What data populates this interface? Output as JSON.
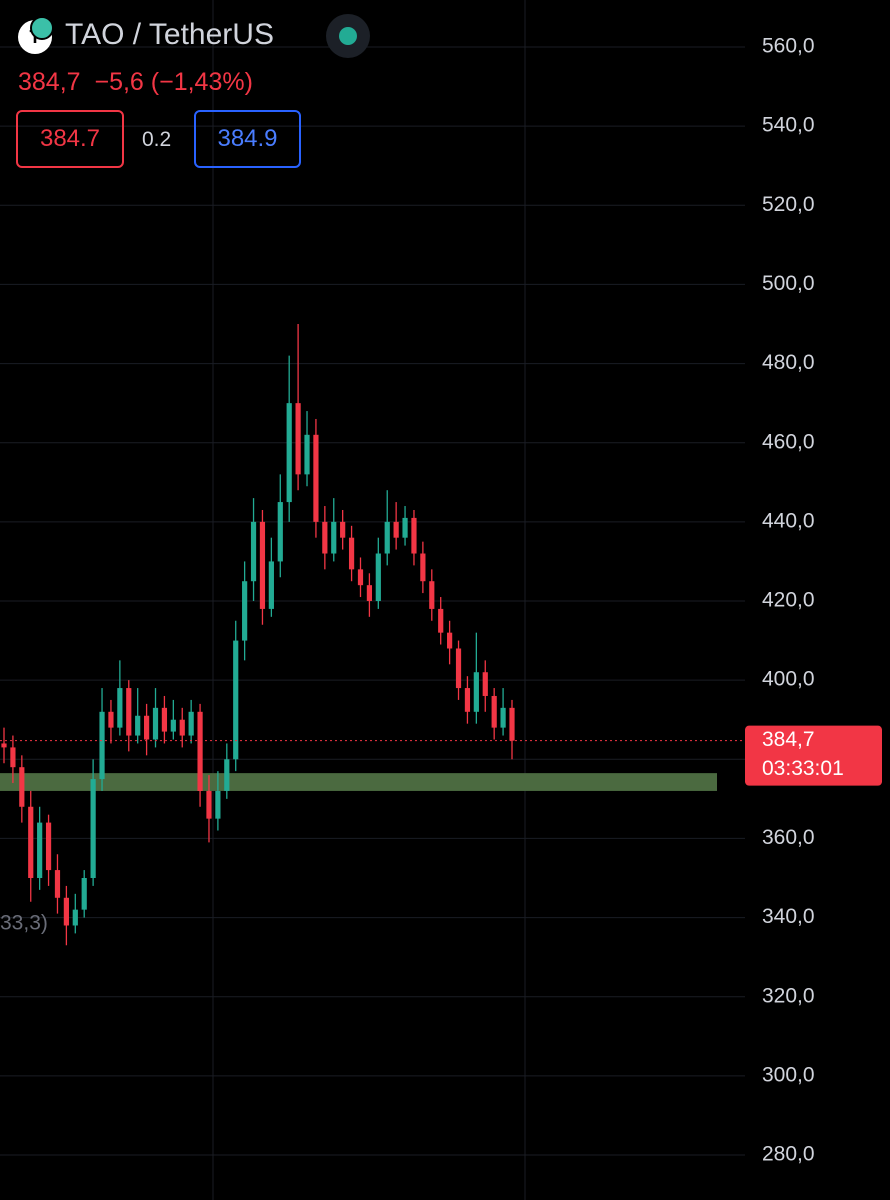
{
  "chart_data": {
    "type": "candlestick",
    "symbol": "TAO / TetherUS",
    "logo_text": "T",
    "last_price_text": "384,7",
    "change_text": "−5,6",
    "change_pct_text": "(−1,43%)",
    "bid": "384.7",
    "spread": "0.2",
    "ask": "384.9",
    "price_tag": {
      "value": 384.7,
      "label": "384,7",
      "countdown": "03:33:01"
    },
    "annotation": "33,3)",
    "up_color": "#22ab94",
    "down_color": "#f23645",
    "zone": {
      "from": 372,
      "to": 376.5,
      "color": "#4b6a40"
    },
    "ylim": [
      280,
      560
    ],
    "yticks": [
      {
        "value": 280,
        "label": "280,0"
      },
      {
        "value": 300,
        "label": "300,0"
      },
      {
        "value": 320,
        "label": "320,0"
      },
      {
        "value": 340,
        "label": "340,0"
      },
      {
        "value": 360,
        "label": "360,0"
      },
      {
        "value": 380,
        "label": "380,0"
      },
      {
        "value": 400,
        "label": "400,0"
      },
      {
        "value": 420,
        "label": "420,0"
      },
      {
        "value": 440,
        "label": "440,0"
      },
      {
        "value": 460,
        "label": "460,0"
      },
      {
        "value": 480,
        "label": "480,0"
      },
      {
        "value": 500,
        "label": "500,0"
      },
      {
        "value": 520,
        "label": "520,0"
      },
      {
        "value": 540,
        "label": "540,0"
      },
      {
        "value": 560,
        "label": "560,0"
      }
    ],
    "grid": true,
    "open": [
      384,
      383,
      378,
      368,
      350,
      364,
      352,
      345,
      338,
      342,
      350,
      375,
      392,
      388,
      398,
      386,
      391,
      385,
      393,
      387,
      390,
      386,
      392,
      372,
      365,
      372,
      380,
      410,
      425,
      440,
      418,
      430,
      445,
      470,
      452,
      462,
      440,
      432,
      440,
      436,
      428,
      424,
      420,
      432,
      440,
      436,
      441,
      432,
      425,
      418,
      412,
      408,
      398,
      392,
      402,
      396,
      388,
      393
    ],
    "high": [
      388,
      386,
      381,
      372,
      368,
      366,
      356,
      348,
      346,
      352,
      380,
      398,
      395,
      405,
      400,
      398,
      394,
      398,
      396,
      395,
      393,
      395,
      394,
      376,
      377,
      384,
      415,
      430,
      446,
      443,
      436,
      452,
      482,
      490,
      468,
      466,
      444,
      446,
      443,
      439,
      431,
      427,
      436,
      448,
      445,
      444,
      443,
      435,
      428,
      421,
      415,
      410,
      401,
      412,
      405,
      398,
      398,
      395
    ],
    "low": [
      379,
      374,
      364,
      344,
      347,
      348,
      341,
      333,
      336,
      340,
      348,
      372,
      384,
      386,
      382,
      384,
      381,
      383,
      384,
      385,
      383,
      384,
      368,
      359,
      362,
      370,
      377,
      405,
      420,
      414,
      416,
      426,
      440,
      448,
      449,
      436,
      428,
      430,
      433,
      425,
      421,
      416,
      418,
      429,
      433,
      434,
      429,
      422,
      415,
      409,
      404,
      395,
      389,
      389,
      392,
      385,
      386,
      380
    ],
    "close": [
      383,
      378,
      368,
      350,
      364,
      352,
      345,
      338,
      342,
      350,
      375,
      392,
      388,
      398,
      386,
      391,
      385,
      393,
      387,
      390,
      386,
      392,
      372,
      365,
      372,
      380,
      410,
      425,
      440,
      418,
      430,
      445,
      470,
      452,
      462,
      440,
      432,
      440,
      436,
      428,
      424,
      420,
      432,
      440,
      436,
      441,
      432,
      425,
      418,
      412,
      408,
      398,
      392,
      402,
      396,
      388,
      393,
      384.7
    ]
  }
}
